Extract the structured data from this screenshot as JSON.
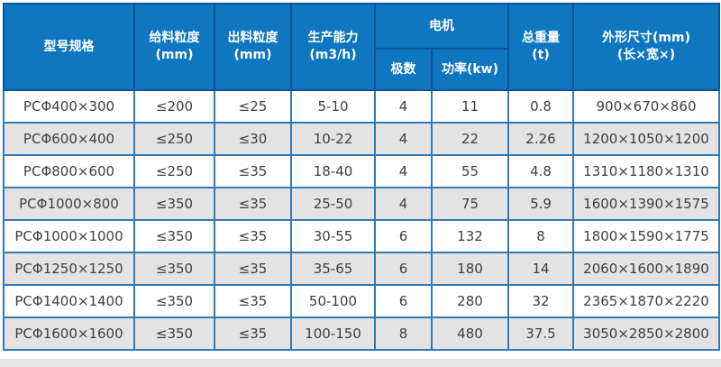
{
  "table": {
    "headers": {
      "model": "型号规格",
      "feed_size": "给料粒度\n(mm)",
      "output_size": "出料粒度\n(mm)",
      "capacity": "生产能力\n(m3/h)",
      "motor": "电机",
      "poles": "极数",
      "power": "功率(kw)",
      "total_weight": "总重量\n(t)",
      "dimensions": "外形尺寸(mm)\n(长×宽×)"
    }
  },
  "colors": {
    "header_bg": "#0f76c0",
    "header_divider": "#0b5596",
    "outer_border": "#17456f",
    "data_border": "#3579b4",
    "row_alt_bg": "#e3e3e3",
    "row_bg": "#ffffff",
    "data_text": "#404040",
    "header_text": "#ffffff"
  },
  "chart_data": {
    "type": "table",
    "columns": [
      "型号规格",
      "给料粒度(mm)",
      "出料粒度(mm)",
      "生产能力(m3/h)",
      "电机-极数",
      "电机-功率(kw)",
      "总重量(t)",
      "外形尺寸(mm)(长×宽×)"
    ],
    "rows": [
      [
        "PCΦ400×300",
        "≤200",
        "≤25",
        "5-10",
        "4",
        "11",
        "0.8",
        "900×670×860"
      ],
      [
        "PCΦ600×400",
        "≤250",
        "≤30",
        "10-22",
        "4",
        "22",
        "2.26",
        "1200×1050×1200"
      ],
      [
        "PCΦ800×600",
        "≤250",
        "≤35",
        "18-40",
        "4",
        "55",
        "4.8",
        "1310×1180×1310"
      ],
      [
        "PCΦ1000×800",
        "≤350",
        "≤35",
        "25-50",
        "4",
        "75",
        "5.9",
        "1600×1390×1575"
      ],
      [
        "PCΦ1000×1000",
        "≤350",
        "≤35",
        "30-55",
        "6",
        "132",
        "8",
        "1800×1590×1775"
      ],
      [
        "PCΦ1250×1250",
        "≤350",
        "≤35",
        "35-65",
        "6",
        "180",
        "14",
        "2060×1600×1890"
      ],
      [
        "PCΦ1400×1400",
        "≤350",
        "≤35",
        "50-100",
        "6",
        "280",
        "32",
        "2365×1870×2220"
      ],
      [
        "PCΦ1600×1600",
        "≤350",
        "≤35",
        "100-150",
        "8",
        "480",
        "37.5",
        "3050×2850×2800"
      ]
    ]
  }
}
